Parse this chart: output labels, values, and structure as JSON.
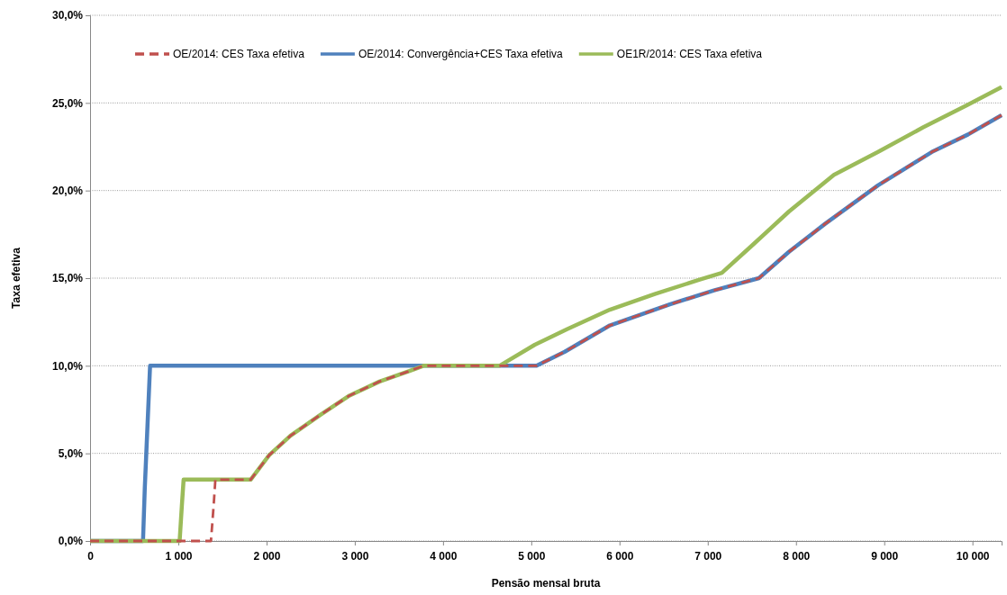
{
  "chart_data": {
    "type": "line",
    "xlabel": "Pensão mensal bruta",
    "ylabel": "Taxa efetiva",
    "xlim": [
      0,
      10330
    ],
    "ylim": [
      0,
      30
    ],
    "xticks": [
      {
        "value": 0,
        "label": "0"
      },
      {
        "value": 1000,
        "label": "1 000"
      },
      {
        "value": 2000,
        "label": "2 000"
      },
      {
        "value": 3000,
        "label": "3 000"
      },
      {
        "value": 4000,
        "label": "4 000"
      },
      {
        "value": 5000,
        "label": "5 000"
      },
      {
        "value": 6000,
        "label": "6 000"
      },
      {
        "value": 7000,
        "label": "7 000"
      },
      {
        "value": 8000,
        "label": "8 000"
      },
      {
        "value": 9000,
        "label": "9 000"
      },
      {
        "value": 10000,
        "label": "10 000"
      }
    ],
    "yticks": [
      {
        "value": 0,
        "label": "0,0%"
      },
      {
        "value": 5,
        "label": "5,0%"
      },
      {
        "value": 10,
        "label": "10,0%"
      },
      {
        "value": 15,
        "label": "15,0%"
      },
      {
        "value": 20,
        "label": "20,0%"
      },
      {
        "value": 25,
        "label": "25,0%"
      },
      {
        "value": 30,
        "label": "30,0%"
      }
    ],
    "grid": "y",
    "legend": "top",
    "marker": "none",
    "series": [
      {
        "name": "OE/2014: CES Taxa efetiva",
        "color": "#c0504d",
        "line_style": "dashed",
        "x": [
          0,
          1370,
          1400,
          1420,
          1820,
          2030,
          2270,
          2610,
          2940,
          3280,
          3620,
          3780,
          5060,
          5380,
          5890,
          6570,
          7070,
          7580,
          7920,
          8330,
          8930,
          9540,
          9950,
          10330
        ],
        "values": [
          0,
          0,
          2,
          3.5,
          3.5,
          4.9,
          6.0,
          7.2,
          8.3,
          9.1,
          9.7,
          10,
          10,
          10.8,
          12.3,
          13.5,
          14.3,
          15.0,
          16.5,
          18.1,
          20.3,
          22.2,
          23.2,
          24.3
        ]
      },
      {
        "name": "OE/2014: Convergência+CES Taxa efetiva",
        "color": "#4f81bd",
        "line_style": "solid",
        "x": [
          0,
          600,
          620,
          650,
          680,
          5060,
          5380,
          5890,
          6570,
          7070,
          7580,
          7920,
          8330,
          8930,
          9540,
          9950,
          10330
        ],
        "values": [
          0,
          0,
          3,
          6.5,
          10,
          10,
          10.8,
          12.3,
          13.5,
          14.3,
          15.0,
          16.5,
          18.1,
          20.3,
          22.2,
          23.2,
          24.3
        ]
      },
      {
        "name": "OE1R/2014: CES Taxa efetiva",
        "color": "#9bbb59",
        "line_style": "solid",
        "x": [
          0,
          1015,
          1040,
          1060,
          1820,
          2030,
          2270,
          2610,
          2940,
          3280,
          3620,
          3780,
          4640,
          5040,
          5410,
          5890,
          6400,
          6900,
          7160,
          7510,
          7920,
          8430,
          8930,
          9440,
          9950,
          10330
        ],
        "values": [
          0,
          0,
          2,
          3.5,
          3.5,
          4.9,
          6.0,
          7.2,
          8.3,
          9.1,
          9.7,
          10,
          10,
          11.2,
          12.1,
          13.2,
          14.1,
          14.9,
          15.3,
          16.9,
          18.8,
          20.9,
          22.2,
          23.6,
          24.9,
          25.9
        ]
      }
    ]
  }
}
